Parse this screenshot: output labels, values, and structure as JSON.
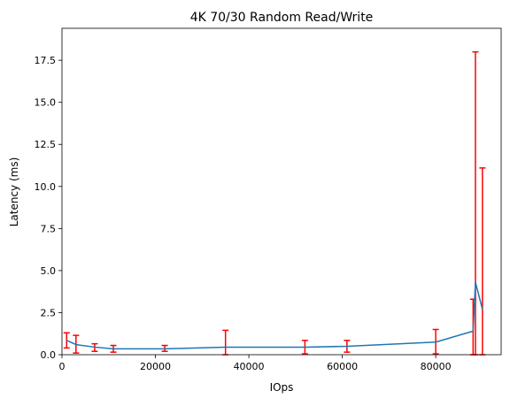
{
  "chart_data": {
    "type": "line",
    "title": "4K 70/30  Random Read/Write",
    "xlabel": "IOps",
    "ylabel": "Latency (ms)",
    "xlim": [
      0,
      94000
    ],
    "ylim": [
      0,
      19.4
    ],
    "x_ticks": [
      0,
      20000,
      40000,
      60000,
      80000
    ],
    "x_tick_labels": [
      "0",
      "20000",
      "40000",
      "60000",
      "80000"
    ],
    "y_ticks": [
      0,
      2.5,
      5,
      7.5,
      10,
      12.5,
      15,
      17.5
    ],
    "y_tick_labels": [
      "0.0",
      "2.5",
      "5.0",
      "7.5",
      "10.0",
      "12.5",
      "15.0",
      "17.5"
    ],
    "grid": false,
    "series": [
      {
        "color": "#1f77b4",
        "points": [
          {
            "x": 1000,
            "y": 0.85,
            "err_low": 0.4,
            "err_high": 1.3
          },
          {
            "x": 3000,
            "y": 0.6,
            "err_low": 0.1,
            "err_high": 1.15
          },
          {
            "x": 7000,
            "y": 0.45,
            "err_low": 0.2,
            "err_high": 0.65
          },
          {
            "x": 11000,
            "y": 0.35,
            "err_low": 0.15,
            "err_high": 0.55
          },
          {
            "x": 22000,
            "y": 0.35,
            "err_low": 0.2,
            "err_high": 0.55
          },
          {
            "x": 35000,
            "y": 0.45,
            "err_low": 0.0,
            "err_high": 1.45
          },
          {
            "x": 52000,
            "y": 0.45,
            "err_low": 0.05,
            "err_high": 0.85
          },
          {
            "x": 61000,
            "y": 0.5,
            "err_low": 0.15,
            "err_high": 0.85
          },
          {
            "x": 80000,
            "y": 0.75,
            "err_low": 0.05,
            "err_high": 1.5
          },
          {
            "x": 88000,
            "y": 1.4,
            "err_low": 0.0,
            "err_high": 3.3
          },
          {
            "x": 88500,
            "y": 4.3,
            "err_low": 0.0,
            "err_high": 18.0
          },
          {
            "x": 90000,
            "y": 2.7,
            "err_low": 0.0,
            "err_high": 11.1
          }
        ]
      }
    ],
    "errorbar_color": "#ff0000"
  }
}
